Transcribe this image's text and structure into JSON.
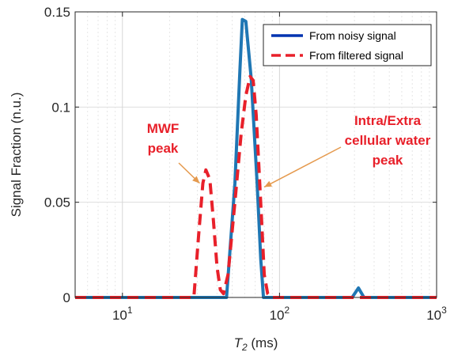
{
  "chart_data": {
    "type": "line",
    "xscale": "log",
    "xlim": [
      5,
      1000
    ],
    "ylim": [
      0,
      0.15
    ],
    "grid": true,
    "xlabel": {
      "base": "T",
      "sub": "2",
      "rest": " (ms)"
    },
    "ylabel": "Signal Fraction (n.u.)",
    "yticks": [
      {
        "value": 0,
        "label": "0"
      },
      {
        "value": 0.05,
        "label": "0.05"
      },
      {
        "value": 0.1,
        "label": "0.1"
      },
      {
        "value": 0.15,
        "label": "0.15"
      }
    ],
    "xticks": [
      {
        "value": 10,
        "base": "10",
        "exp": "1"
      },
      {
        "value": 100,
        "base": "10",
        "exp": "2"
      },
      {
        "value": 1000,
        "base": "10",
        "exp": "3"
      }
    ],
    "legend": {
      "position": "top-right"
    },
    "series": [
      {
        "name": "From noisy signal",
        "color": "#1f77b4",
        "legend_color": "#0033b0",
        "style": "solid",
        "x": [
          5,
          46,
          52,
          56,
          58,
          61,
          66,
          72,
          76,
          79,
          82,
          290,
          318,
          345,
          375,
          1000
        ],
        "y": [
          0,
          0,
          0.06,
          0.12,
          0.146,
          0.145,
          0.115,
          0.06,
          0.02,
          0,
          0,
          0,
          0.005,
          0,
          0,
          0
        ]
      },
      {
        "name": "From filtered signal",
        "color": "#e8202a",
        "style": "dashed",
        "x": [
          5,
          28.5,
          30.5,
          32.5,
          34,
          36,
          38,
          40,
          42,
          44,
          47,
          52,
          57,
          61,
          65,
          68,
          71,
          74,
          77,
          80,
          84,
          88,
          1000
        ],
        "y": [
          0,
          0,
          0.032,
          0.06,
          0.067,
          0.062,
          0.04,
          0.016,
          0.004,
          0.002,
          0.012,
          0.05,
          0.086,
          0.106,
          0.116,
          0.114,
          0.096,
          0.068,
          0.04,
          0.012,
          0.002,
          0,
          0
        ]
      }
    ],
    "annotations": [
      {
        "lines": [
          "MWF",
          "peak"
        ],
        "arrow_to": {
          "x": 31,
          "y": 0.06
        }
      },
      {
        "lines": [
          "Intra/Extra",
          "cellular water",
          "peak"
        ],
        "arrow_to": {
          "x": 80,
          "y": 0.058
        }
      }
    ]
  }
}
